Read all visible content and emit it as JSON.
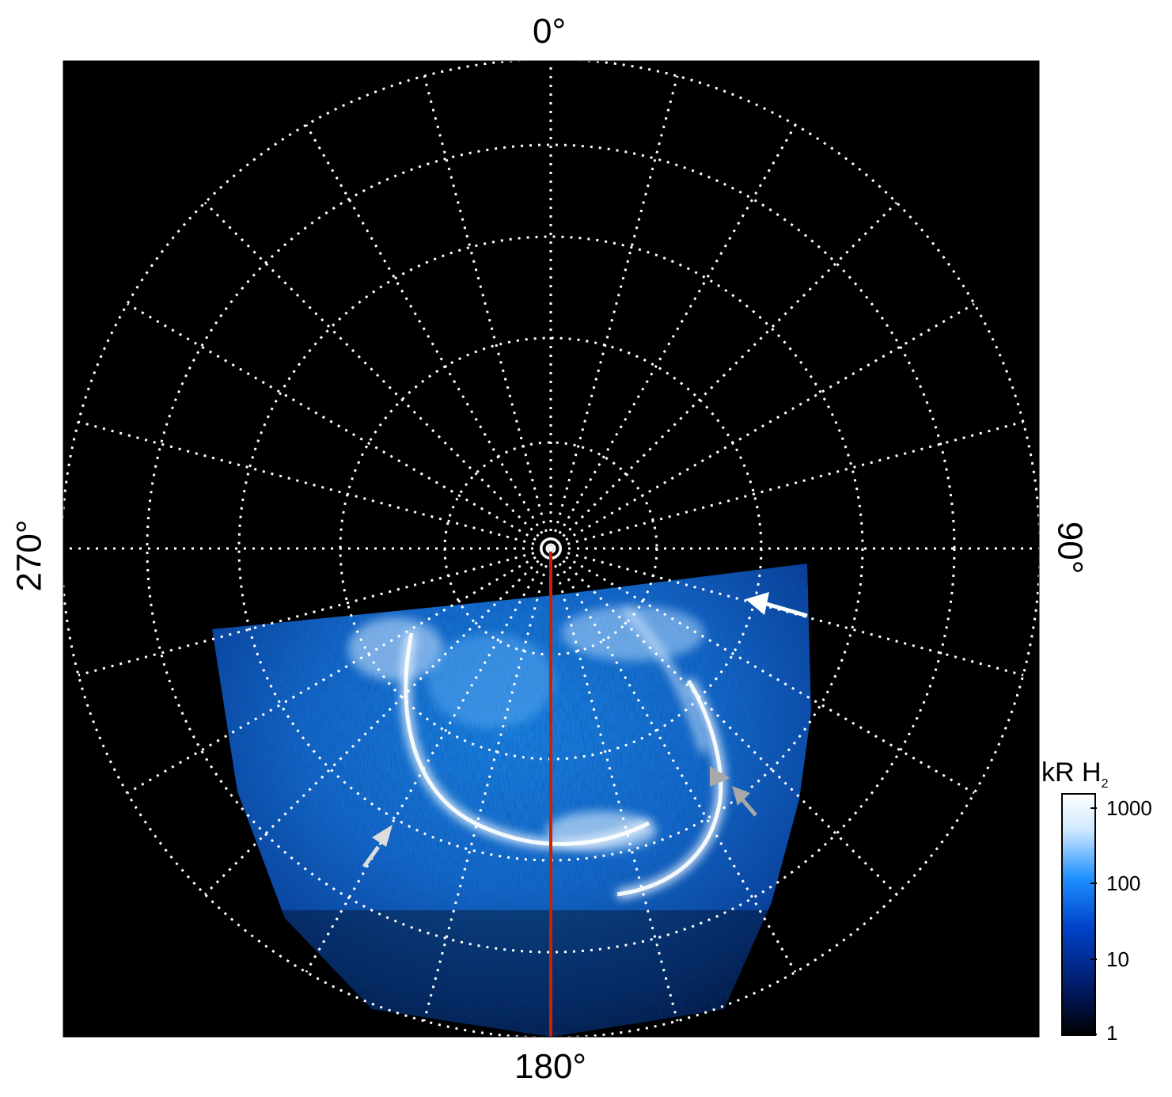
{
  "projection_labels": {
    "top": "0°",
    "bottom": "180°",
    "left": "270°",
    "right": "90°"
  },
  "colorbar": {
    "unit_main": "kR H",
    "unit_sub": "2",
    "scale": "log",
    "ticks": [
      "1000",
      "100",
      "10",
      "1"
    ],
    "colors": [
      "#000000",
      "#001a66",
      "#0044cc",
      "#1e90ff",
      "#cfe8ff",
      "#ffffff"
    ]
  },
  "colors": {
    "background": "#000000",
    "grid": "#ffffff",
    "meridian_line": "#cc2200",
    "arrow_white": "#ffffff",
    "arrow_grey": "#a8a8a8",
    "arrow_light": "#dcdcdc"
  },
  "annotations": [
    {
      "name": "arrow-white",
      "color": "white"
    },
    {
      "name": "arrowhead-grey",
      "color": "grey"
    },
    {
      "name": "arrow-grey",
      "color": "grey"
    },
    {
      "name": "arrow-light-grey",
      "color": "light-grey"
    }
  ]
}
